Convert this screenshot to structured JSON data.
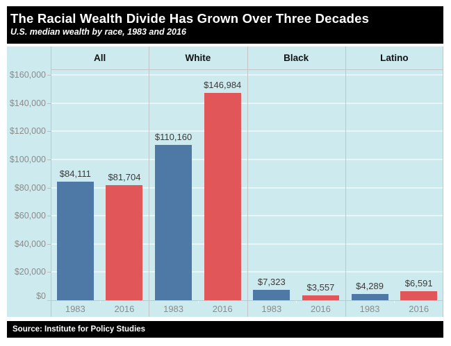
{
  "header": {
    "title": "The Racial Wealth Divide Has Grown Over Three Decades",
    "subtitle": "U.S. median wealth by race, 1983 and 2016"
  },
  "footer": {
    "source": "Source: Institute for Policy Studies"
  },
  "chart_data": {
    "type": "bar",
    "title": "The Racial Wealth Divide Has Grown Over Three Decades",
    "subtitle": "U.S. median wealth by race, 1983 and 2016",
    "panels": [
      "All",
      "White",
      "Black",
      "Latino"
    ],
    "categories": [
      "1983",
      "2016"
    ],
    "series": [
      {
        "name": "1983",
        "color": "#4e79a7",
        "values": [
          84111,
          110160,
          7323,
          4289
        ],
        "labels": [
          "$84,111",
          "$110,160",
          "$7,323",
          "$4,289"
        ]
      },
      {
        "name": "2016",
        "color": "#e15759",
        "values": [
          81704,
          146984,
          3557,
          6591
        ],
        "labels": [
          "$81,704",
          "$146,984",
          "$3,557",
          "$6,591"
        ]
      }
    ],
    "y_axis": {
      "min": 0,
      "max": 160000,
      "tick_interval": 20000,
      "tick_labels": [
        "$0",
        "$20,000",
        "$40,000",
        "$60,000",
        "$80,000",
        "$100,000",
        "$120,000",
        "$140,000",
        "$160,000"
      ]
    },
    "grid": true,
    "legend": "none",
    "source": "Source: Institute for Policy Studies",
    "colors": {
      "plot_background": "#cdeaee",
      "bar_1983": "#4e79a7",
      "bar_2016": "#e15759",
      "gridline": "#e9f6f8",
      "divider": "#c2c6c7",
      "axis_label": "#8b8b8b",
      "value_label": "#3a3a3a",
      "header_bg": "#000000",
      "header_text": "#ffffff"
    }
  }
}
